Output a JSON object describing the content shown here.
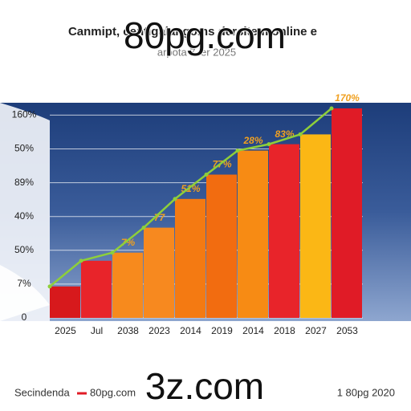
{
  "chart_data": {
    "type": "bar",
    "title": "Canmipt, centigalangoms dersitem online e",
    "subtitle": "arpota 7 ler 2025",
    "watermarks": [
      "80pg.com",
      "3z.com"
    ],
    "footer_left": "Secindenda",
    "footer_right": "1 80pg 2020",
    "categories": [
      "2025",
      "Jul",
      "2038",
      "2023",
      "2014",
      "2019",
      "2014",
      "2018",
      "2027",
      "2053"
    ],
    "series": [
      {
        "name": "80pg.com",
        "color": "#8ecf3a",
        "values": [
          0.93,
          1.69,
          1.93,
          2.67,
          3.52,
          4.24,
          4.95,
          5.14,
          5.43,
          6.2
        ]
      }
    ],
    "bar_colors": [
      "#d7191c",
      "#e8242a",
      "#f78a1d",
      "#f7891f",
      "#f47a12",
      "#f26c10",
      "#f78b14",
      "#e8242a",
      "#fbb715",
      "#e01b26"
    ],
    "bar_annotations": [
      null,
      null,
      "7%",
      "77",
      "51%",
      "77%",
      "28%",
      "83%",
      null,
      "170%"
    ],
    "ylim": [
      0,
      6.2
    ],
    "yticks": [
      {
        "value": 0,
        "label": "0"
      },
      {
        "value": 1,
        "label": "7%"
      },
      {
        "value": 2,
        "label": "50%"
      },
      {
        "value": 3,
        "label": "40%"
      },
      {
        "value": 4,
        "label": "89%"
      },
      {
        "value": 5,
        "label": "50%"
      },
      {
        "value": 6,
        "label": "160%"
      }
    ],
    "grid": true
  }
}
